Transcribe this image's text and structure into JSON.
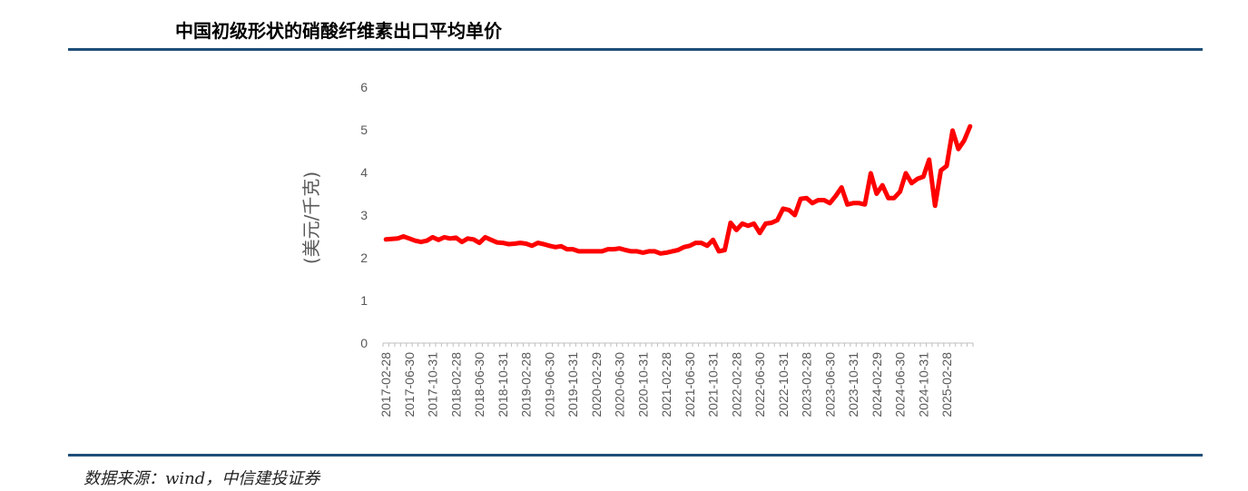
{
  "header": {
    "title": "中国初级形状的硝酸纤维素出口平均单价"
  },
  "footer": {
    "source": "数据来源：wind，中信建投证券"
  },
  "colors": {
    "rule": "#1F4E79",
    "line": "#FF0000",
    "axis": "#BFBFBF",
    "tick_text": "#595959"
  },
  "chart_data": {
    "type": "line",
    "title": "中国初级形状的硝酸纤维素出口平均单价",
    "ylabel": "(美元/千克)",
    "xlabel": "",
    "ylim": [
      0,
      6
    ],
    "yticks": [
      "0",
      "1",
      "2",
      "3",
      "4",
      "5",
      "6"
    ],
    "grid": false,
    "legend": "none",
    "xtick_labels": [
      "2017-02-28",
      "2017-06-30",
      "2017-10-31",
      "2018-02-28",
      "2018-06-30",
      "2018-10-31",
      "2019-02-28",
      "2019-06-30",
      "2019-10-31",
      "2020-02-29",
      "2020-06-30",
      "2020-10-31",
      "2021-02-28",
      "2021-06-30",
      "2021-10-31",
      "2022-02-28",
      "2022-06-30",
      "2022-10-31",
      "2023-02-28",
      "2023-06-30",
      "2023-10-31",
      "2024-02-29",
      "2024-06-30",
      "2024-10-31",
      "2025-02-28"
    ],
    "x_start": "2017-02",
    "series": [
      {
        "values": [
          2.43,
          2.44,
          2.45,
          2.5,
          2.45,
          2.4,
          2.37,
          2.4,
          2.48,
          2.42,
          2.48,
          2.45,
          2.47,
          2.37,
          2.45,
          2.43,
          2.35,
          2.48,
          2.42,
          2.36,
          2.35,
          2.32,
          2.33,
          2.35,
          2.33,
          2.28,
          2.35,
          2.32,
          2.28,
          2.25,
          2.27,
          2.2,
          2.2,
          2.15,
          2.15,
          2.15,
          2.15,
          2.15,
          2.2,
          2.2,
          2.22,
          2.18,
          2.15,
          2.15,
          2.12,
          2.15,
          2.15,
          2.1,
          2.12,
          2.15,
          2.18,
          2.25,
          2.28,
          2.35,
          2.35,
          2.28,
          2.42,
          2.15,
          2.18,
          2.82,
          2.65,
          2.8,
          2.75,
          2.8,
          2.58,
          2.8,
          2.82,
          2.88,
          3.15,
          3.12,
          3.0,
          3.38,
          3.4,
          3.28,
          3.35,
          3.35,
          3.28,
          3.45,
          3.65,
          3.25,
          3.28,
          3.28,
          3.25,
          3.98,
          3.5,
          3.7,
          3.4,
          3.4,
          3.55,
          3.98,
          3.75,
          3.85,
          3.9,
          4.3,
          3.22,
          4.05,
          4.15,
          4.98,
          4.55,
          4.75,
          5.08
        ]
      }
    ]
  }
}
